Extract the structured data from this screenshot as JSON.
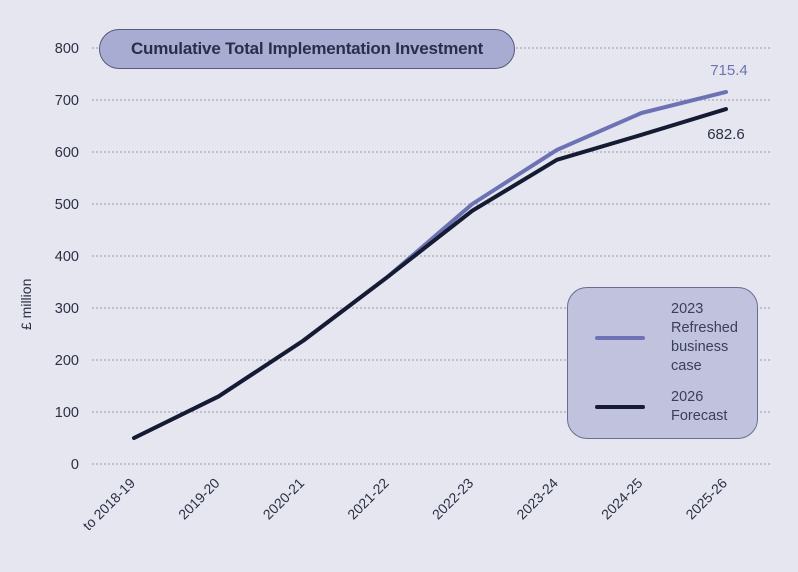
{
  "chart_data": {
    "type": "line",
    "title": "Cumulative Total Implementation Investment",
    "xlabel": "",
    "ylabel": "£ million",
    "ylim": [
      0,
      800
    ],
    "yticks": [
      0,
      100,
      200,
      300,
      400,
      500,
      600,
      700,
      800
    ],
    "grid": true,
    "legend_position": "bottom-right",
    "categories": [
      "to 2018-19",
      "2019-20",
      "2020-21",
      "2021-22",
      "2022-23",
      "2023-24",
      "2024-25",
      "2025-26"
    ],
    "series": [
      {
        "name": "2023 Refreshed business case",
        "color": "#6c72b4",
        "values": [
          50,
          130,
          237,
          360,
          500,
          604,
          675,
          715.4
        ],
        "end_label": "715.4"
      },
      {
        "name": "2026 Forecast",
        "color": "#141b33",
        "values": [
          50,
          130,
          237,
          360,
          487,
          585,
          633,
          682.6
        ],
        "end_label": "682.6"
      }
    ]
  },
  "legend": {
    "items": [
      {
        "label": "2023 Refreshed business case"
      },
      {
        "label": "2026 Forecast"
      }
    ]
  }
}
